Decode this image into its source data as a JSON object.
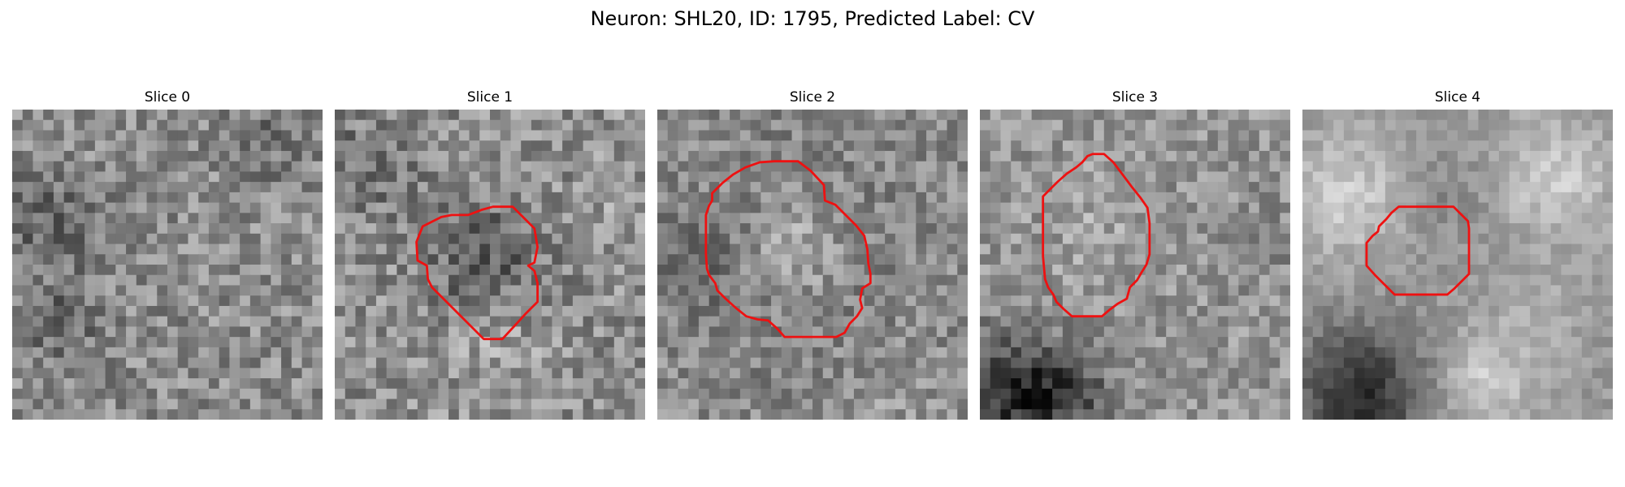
{
  "figure": {
    "title": "Neuron: SHL20, ID: 1795, Predicted Label: CV"
  },
  "panels": [
    {
      "label": "Slice 0",
      "contour_color": "#ee1111",
      "contour": []
    },
    {
      "label": "Slice 1",
      "contour_color": "#ee1111",
      "contour": [
        [
          14.2,
          9.7
        ],
        [
          15.3,
          9.4
        ],
        [
          17.2,
          9.4
        ],
        [
          18.4,
          10.6
        ],
        [
          19.3,
          11.5
        ],
        [
          19.6,
          13.3
        ],
        [
          19.3,
          14.8
        ],
        [
          18.7,
          15.1
        ],
        [
          19.3,
          15.6
        ],
        [
          19.6,
          16.8
        ],
        [
          19.6,
          18.6
        ],
        [
          18.5,
          19.7
        ],
        [
          17.5,
          20.8
        ],
        [
          16.2,
          22.2
        ],
        [
          14.4,
          22.2
        ],
        [
          13.4,
          21.2
        ],
        [
          12.0,
          19.8
        ],
        [
          10.6,
          18.4
        ],
        [
          9.4,
          17.2
        ],
        [
          9.0,
          16.4
        ],
        [
          8.9,
          15.1
        ],
        [
          8.0,
          14.6
        ],
        [
          7.9,
          12.8
        ],
        [
          8.5,
          11.3
        ],
        [
          10.3,
          10.4
        ],
        [
          11.3,
          10.2
        ],
        [
          12.9,
          10.2
        ]
      ]
    },
    {
      "label": "Slice 2",
      "contour_color": "#ee1111",
      "contour": [
        [
          9.9,
          5.1
        ],
        [
          11.3,
          5.0
        ],
        [
          13.6,
          5.0
        ],
        [
          14.8,
          5.9
        ],
        [
          16.1,
          7.3
        ],
        [
          16.2,
          8.8
        ],
        [
          17.2,
          9.2
        ],
        [
          18.2,
          10.2
        ],
        [
          19.2,
          11.2
        ],
        [
          20.0,
          12.2
        ],
        [
          20.3,
          13.5
        ],
        [
          20.4,
          14.9
        ],
        [
          20.6,
          15.9
        ],
        [
          20.6,
          16.8
        ],
        [
          19.8,
          17.3
        ],
        [
          19.6,
          18.4
        ],
        [
          19.8,
          19.2
        ],
        [
          19.3,
          20.0
        ],
        [
          18.6,
          20.7
        ],
        [
          18.1,
          21.6
        ],
        [
          17.3,
          22.0
        ],
        [
          16.2,
          22.0
        ],
        [
          14.2,
          22.0
        ],
        [
          12.3,
          22.0
        ],
        [
          11.6,
          21.2
        ],
        [
          10.7,
          20.4
        ],
        [
          9.7,
          20.3
        ],
        [
          8.6,
          20.0
        ],
        [
          7.6,
          19.2
        ],
        [
          6.6,
          18.3
        ],
        [
          5.8,
          17.5
        ],
        [
          5.6,
          16.8
        ],
        [
          5.0,
          16.0
        ],
        [
          4.8,
          15.4
        ],
        [
          4.7,
          14.0
        ],
        [
          4.7,
          12.5
        ],
        [
          4.7,
          11.0
        ],
        [
          4.7,
          10.2
        ],
        [
          5.0,
          9.3
        ],
        [
          5.3,
          8.8
        ],
        [
          5.3,
          8.1
        ],
        [
          6.3,
          7.1
        ],
        [
          7.3,
          6.3
        ],
        [
          8.5,
          5.6
        ]
      ]
    },
    {
      "label": "Slice 3",
      "contour_color": "#ee1111",
      "contour": [
        [
          10.9,
          4.3
        ],
        [
          12.0,
          4.3
        ],
        [
          12.9,
          5.1
        ],
        [
          13.8,
          6.3
        ],
        [
          14.7,
          7.5
        ],
        [
          15.5,
          8.5
        ],
        [
          16.2,
          9.5
        ],
        [
          16.4,
          11.0
        ],
        [
          16.4,
          12.5
        ],
        [
          16.4,
          14.0
        ],
        [
          16.1,
          15.0
        ],
        [
          15.6,
          15.8
        ],
        [
          15.2,
          16.5
        ],
        [
          14.5,
          17.2
        ],
        [
          14.2,
          18.3
        ],
        [
          13.3,
          18.8
        ],
        [
          12.5,
          19.4
        ],
        [
          11.8,
          20.0
        ],
        [
          10.8,
          20.0
        ],
        [
          9.8,
          20.0
        ],
        [
          8.9,
          20.0
        ],
        [
          8.1,
          19.3
        ],
        [
          7.4,
          18.6
        ],
        [
          7.1,
          17.9
        ],
        [
          6.6,
          17.2
        ],
        [
          6.3,
          16.4
        ],
        [
          6.2,
          15.3
        ],
        [
          6.1,
          14.2
        ],
        [
          6.1,
          13.0
        ],
        [
          6.1,
          11.8
        ],
        [
          6.1,
          10.5
        ],
        [
          6.1,
          9.3
        ],
        [
          6.1,
          8.4
        ],
        [
          6.7,
          7.8
        ],
        [
          7.5,
          7.0
        ],
        [
          8.4,
          6.2
        ],
        [
          9.3,
          5.6
        ],
        [
          9.9,
          5.1
        ],
        [
          10.4,
          4.5
        ]
      ]
    },
    {
      "label": "Slice 4",
      "contour_color": "#ee1111",
      "contour": [
        [
          9.3,
          9.4
        ],
        [
          11.3,
          9.4
        ],
        [
          13.3,
          9.4
        ],
        [
          14.6,
          9.4
        ],
        [
          15.3,
          10.1
        ],
        [
          16.0,
          10.8
        ],
        [
          16.1,
          11.5
        ],
        [
          16.1,
          12.6
        ],
        [
          16.1,
          13.9
        ],
        [
          16.1,
          15.1
        ],
        [
          16.1,
          15.9
        ],
        [
          15.4,
          16.6
        ],
        [
          14.7,
          17.3
        ],
        [
          14.0,
          17.9
        ],
        [
          13.0,
          17.9
        ],
        [
          11.9,
          17.9
        ],
        [
          10.8,
          17.9
        ],
        [
          9.9,
          17.9
        ],
        [
          8.9,
          17.9
        ],
        [
          8.3,
          17.3
        ],
        [
          7.6,
          16.6
        ],
        [
          7.0,
          16.0
        ],
        [
          6.2,
          15.1
        ],
        [
          6.2,
          14.0
        ],
        [
          6.2,
          12.9
        ],
        [
          6.8,
          12.2
        ],
        [
          7.3,
          11.8
        ],
        [
          7.4,
          11.3
        ],
        [
          8.1,
          10.6
        ],
        [
          8.6,
          10.0
        ]
      ]
    }
  ]
}
